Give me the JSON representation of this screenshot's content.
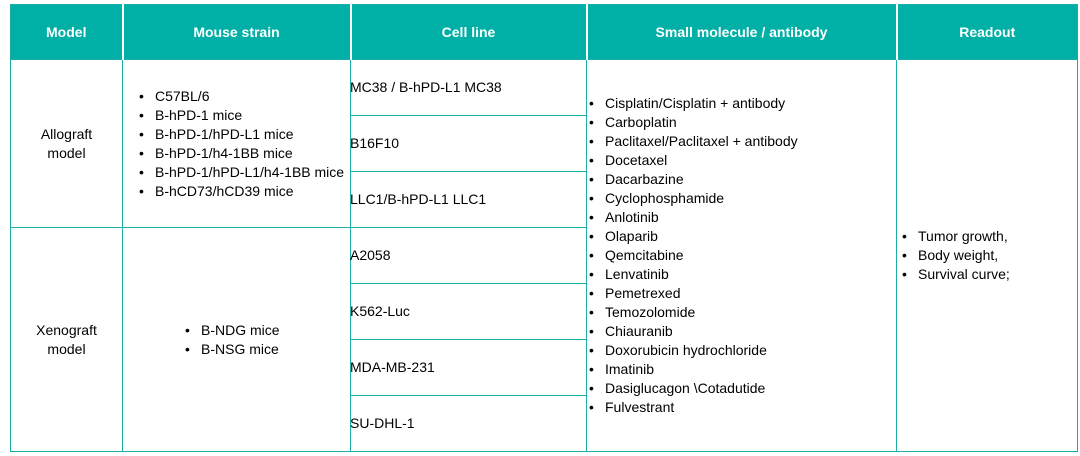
{
  "headers": [
    "Model",
    "Mouse strain",
    "Cell line",
    "Small molecule / antibody",
    "Readout"
  ],
  "allograft": {
    "model": [
      "Allograft",
      "model"
    ],
    "strains": [
      "C57BL/6",
      "B-hPD-1 mice",
      "B-hPD-1/hPD-L1 mice",
      "B-hPD-1/h4-1BB mice",
      "B-hPD-1/hPD-L1/h4-1BB mice",
      "B-hCD73/hCD39 mice"
    ],
    "cell_lines": [
      "MC38 / B-hPD-L1 MC38",
      "B16F10",
      "LLC1/B-hPD-L1 LLC1"
    ]
  },
  "xenograft": {
    "model": [
      "Xenograft",
      "model"
    ],
    "strains": [
      "B-NDG mice",
      "B-NSG mice"
    ],
    "cell_lines": [
      "A2058",
      "K562-Luc",
      "MDA-MB-231",
      "SU-DHL-1"
    ]
  },
  "molecules": [
    "Cisplatin/Cisplatin + antibody",
    "Carboplatin",
    "Paclitaxel/Paclitaxel + antibody",
    "Docetaxel",
    "Dacarbazine",
    "Cyclophosphamide",
    "Anlotinib",
    "Olaparib",
    "Qemcitabine",
    "Lenvatinib",
    "Pemetrexed",
    "Temozolomide",
    "Chiauranib",
    "Doxorubicin hydrochloride",
    "Imatinib",
    "Dasiglucagon \\Cotadutide",
    "Fulvestrant"
  ],
  "readouts": [
    "Tumor growth,",
    "Body weight,",
    "Survival curve;"
  ],
  "colors": {
    "header_bg": "#00afa6",
    "border": "#1aaea7",
    "header_text": "#ffffff"
  }
}
